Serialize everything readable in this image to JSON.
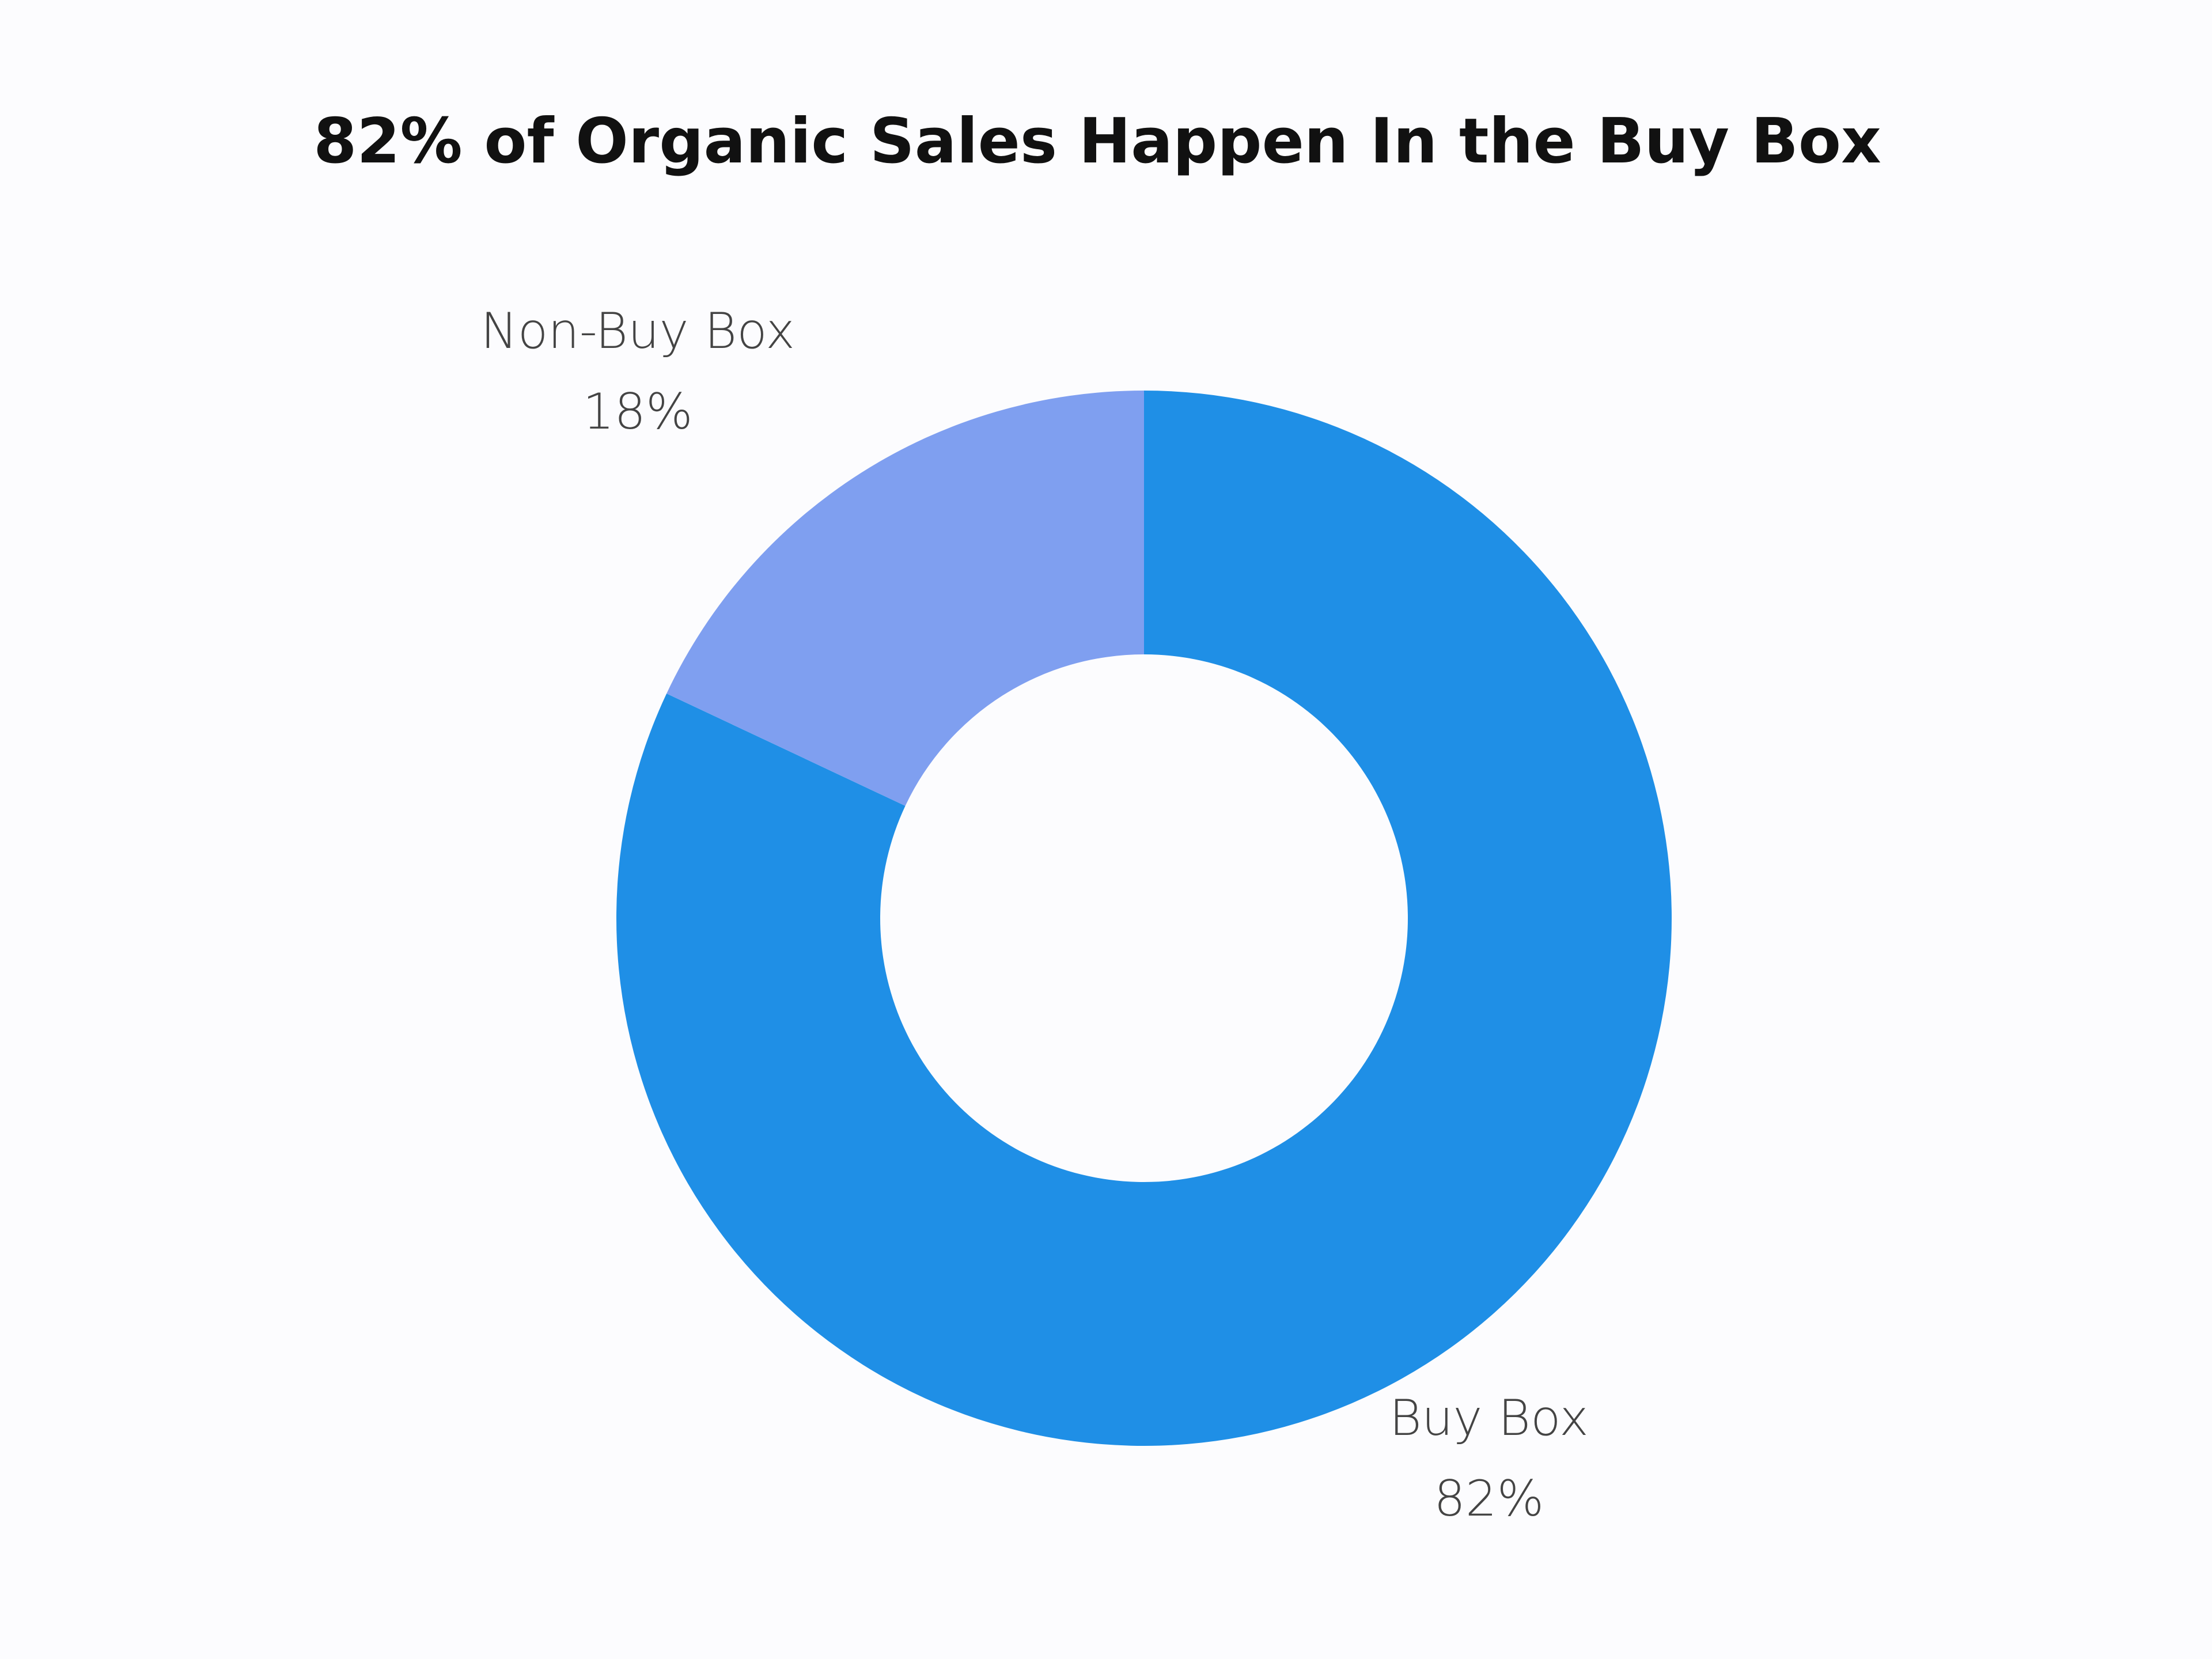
{
  "chart_data": {
    "type": "pie",
    "title": "82% of Organic Sales Happen In the Buy Box",
    "categories": [
      "Buy Box",
      "Non-Buy Box"
    ],
    "values": [
      82,
      18
    ],
    "value_labels": [
      "82%",
      "18%"
    ],
    "colors": [
      "#1f8fe6",
      "#7f9ff0"
    ],
    "donut": true
  }
}
